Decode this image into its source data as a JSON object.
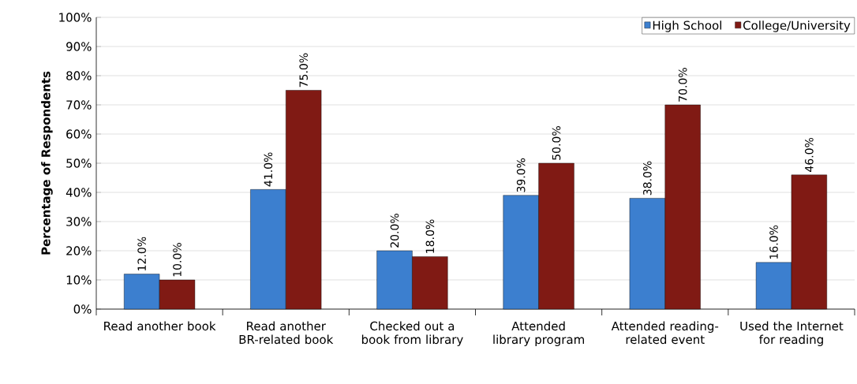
{
  "chart_data": {
    "type": "bar",
    "ylabel": "Percentage of Respondents",
    "categories": [
      "Read another book",
      "Read another BR-related book",
      "Checked out a book from library",
      "Attended library program",
      "Attended reading-related event",
      "Used the Internet for reading"
    ],
    "series": [
      {
        "name": "High School",
        "color": "#3c7fcf",
        "values": [
          12,
          41,
          20,
          39,
          38,
          16
        ],
        "value_labels": [
          "12.0%",
          "41.0%",
          "20.0%",
          "39.0%",
          "38.0%",
          "16.0%"
        ]
      },
      {
        "name": "College/University",
        "color": "#801a14",
        "values": [
          10,
          75,
          18,
          50,
          70,
          46
        ],
        "value_labels": [
          "10.0%",
          "75.0%",
          "18.0%",
          "50.0%",
          "70.0%",
          "46.0%"
        ]
      }
    ],
    "ylim": [
      0,
      100
    ],
    "yticks": [
      {
        "value": 0,
        "label": "0%"
      },
      {
        "value": 10,
        "label": "10%"
      },
      {
        "value": 20,
        "label": "20%"
      },
      {
        "value": 30,
        "label": "30%"
      },
      {
        "value": 40,
        "label": "40%"
      },
      {
        "value": 50,
        "label": "50%"
      },
      {
        "value": 60,
        "label": "60%"
      },
      {
        "value": 70,
        "label": "70%"
      },
      {
        "value": 80,
        "label": "80%"
      },
      {
        "value": 90,
        "label": "90%"
      },
      {
        "value": 100,
        "label": "100%"
      }
    ],
    "grid": "y",
    "legend": "top right"
  }
}
